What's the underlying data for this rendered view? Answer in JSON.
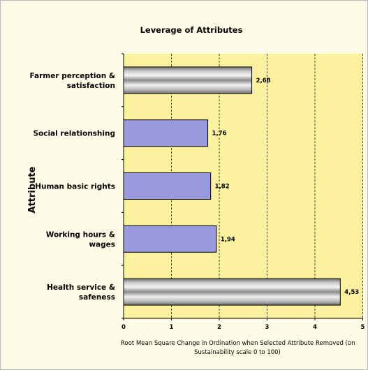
{
  "chart_data": {
    "type": "bar",
    "orientation": "horizontal",
    "title": "Leverage of Attributes",
    "ylabel": "Attribute",
    "xlabel_lines": [
      "Root Mean Square Change in Ordination when Selected Attribute Removed (on",
      "Sustainability scale 0 to 100)"
    ],
    "categories": [
      [
        "Farmer perception &",
        "satisfaction"
      ],
      [
        "Social relationshing"
      ],
      [
        "Human basic rights"
      ],
      [
        "Working hours &",
        "wages"
      ],
      [
        "Health service &",
        "safeness"
      ]
    ],
    "values": [
      2.68,
      1.76,
      1.82,
      1.94,
      4.53
    ],
    "value_labels": [
      "2,68",
      "1,76",
      "1,82",
      "1,94",
      "4,53"
    ],
    "bar_styles": [
      "metallic",
      "flat",
      "flat",
      "flat",
      "metallic"
    ],
    "xlim": [
      0,
      5
    ],
    "xticks": [
      0,
      1,
      2,
      3,
      4,
      5
    ],
    "xtick_labels": [
      "0",
      "1",
      "2",
      "3",
      "4",
      "5"
    ],
    "grid": "vertical-dashed",
    "colors": {
      "plot_bg": "#fbf19e",
      "frame_bg": "#fefce6",
      "flat_bar": "#9999dd",
      "grid": "#000000"
    }
  }
}
